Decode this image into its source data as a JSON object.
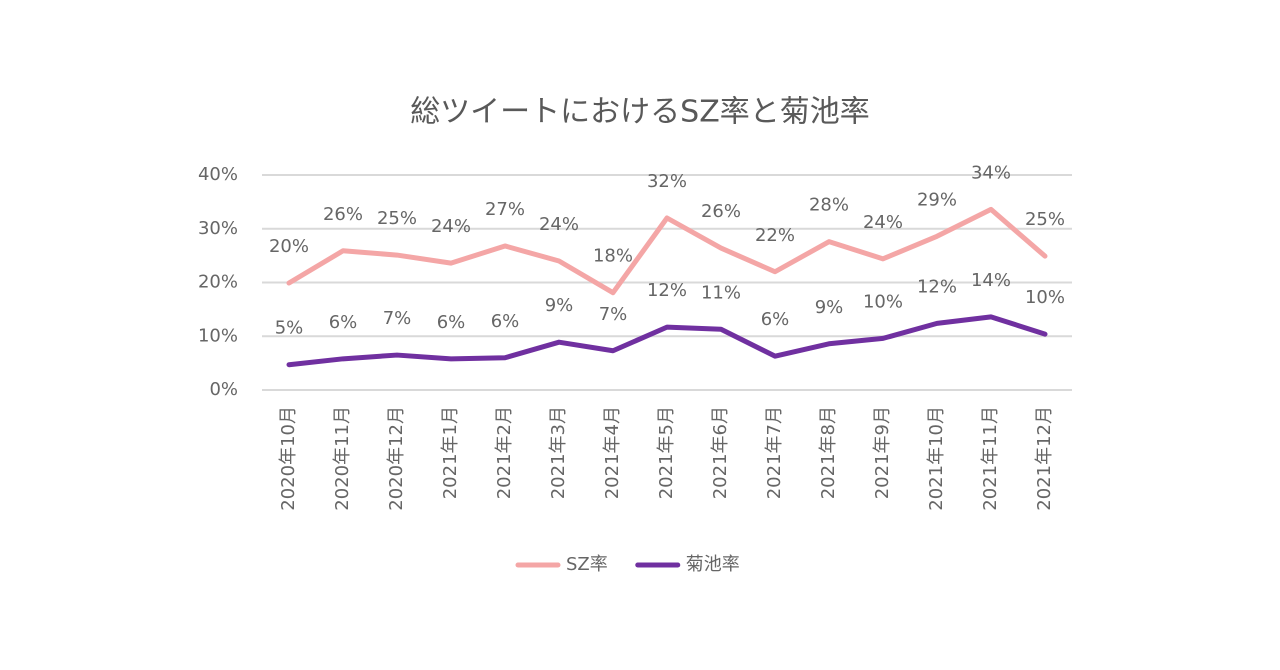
{
  "chart_data": {
    "type": "line",
    "title": "総ツイートにおけるSZ率と菊池率",
    "categories": [
      "2020年10月",
      "2020年11月",
      "2020年12月",
      "2021年1月",
      "2021年2月",
      "2021年3月",
      "2021年4月",
      "2021年5月",
      "2021年6月",
      "2021年7月",
      "2021年8月",
      "2021年9月",
      "2021年10月",
      "2021年11月",
      "2021年12月"
    ],
    "series": [
      {
        "name": "SZ率",
        "color": "#f4a6a6",
        "values": [
          19.9,
          25.9,
          25.1,
          23.6,
          26.8,
          24.0,
          18.1,
          32.0,
          26.4,
          22.0,
          27.6,
          24.4,
          28.6,
          33.6,
          24.9
        ],
        "value_labels": [
          "20%",
          "26%",
          "25%",
          "24%",
          "27%",
          "24%",
          "18%",
          "32%",
          "26%",
          "22%",
          "28%",
          "24%",
          "29%",
          "34%",
          "25%"
        ]
      },
      {
        "name": "菊池率",
        "color": "#7030a0",
        "values": [
          4.7,
          5.8,
          6.5,
          5.8,
          6.0,
          8.9,
          7.3,
          11.7,
          11.3,
          6.3,
          8.6,
          9.6,
          12.4,
          13.6,
          10.4
        ],
        "value_labels": [
          "5%",
          "6%",
          "7%",
          "6%",
          "6%",
          "9%",
          "7%",
          "12%",
          "11%",
          "6%",
          "9%",
          "10%",
          "12%",
          "14%",
          "10%"
        ]
      }
    ],
    "ylim": [
      0,
      40
    ],
    "yticks": [
      {
        "value": 0,
        "label": "0%"
      },
      {
        "value": 10,
        "label": "10%"
      },
      {
        "value": 20,
        "label": "20%"
      },
      {
        "value": 30,
        "label": "30%"
      },
      {
        "value": 40,
        "label": "40%"
      }
    ],
    "grid": true,
    "legend": "bottom"
  }
}
